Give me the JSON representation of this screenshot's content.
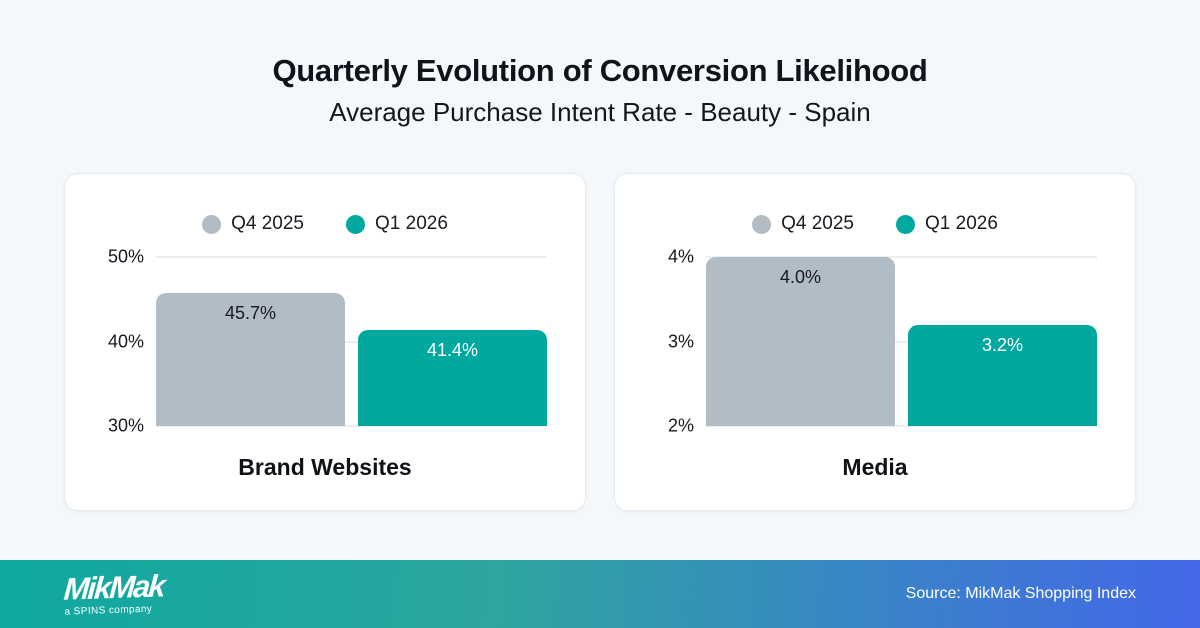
{
  "header": {
    "title": "Quarterly Evolution of Conversion Likelihood",
    "subtitle": "Average Purchase Intent Rate - Beauty - Spain"
  },
  "legend": {
    "items": [
      {
        "label": "Q4 2025",
        "color": "#b1bcc5",
        "value_label_color": "#16191f"
      },
      {
        "label": "Q1 2026",
        "color": "#00a8a0",
        "value_label_color": "#ffffff"
      }
    ],
    "position": "top"
  },
  "chart_data": [
    {
      "type": "bar",
      "title": "Brand Websites",
      "categories": [
        "Q4 2025",
        "Q1 2026"
      ],
      "values": [
        45.7,
        41.4
      ],
      "value_labels": [
        "45.7%",
        "41.4%"
      ],
      "ylim": [
        30,
        50
      ],
      "y_ticks": [
        {
          "value": 50,
          "label": "50%"
        },
        {
          "value": 40,
          "label": "40%"
        },
        {
          "value": 30,
          "label": "30%"
        }
      ],
      "grid": true,
      "unit": "%"
    },
    {
      "type": "bar",
      "title": "Media",
      "categories": [
        "Q4 2025",
        "Q1 2026"
      ],
      "values": [
        4.0,
        3.2
      ],
      "value_labels": [
        "4.0%",
        "3.2%"
      ],
      "ylim": [
        2,
        4
      ],
      "y_ticks": [
        {
          "value": 4,
          "label": "4%"
        },
        {
          "value": 3,
          "label": "3%"
        },
        {
          "value": 2,
          "label": "2%"
        }
      ],
      "grid": true,
      "unit": "%"
    }
  ],
  "footer": {
    "logo_text": "MikMak",
    "logo_tagline": "a SPINS company",
    "source": "Source: MikMak Shopping Index"
  },
  "colors": {
    "background": "#f4f8fb",
    "card": "#ffffff",
    "gridline": "#d9dde2",
    "series_q4": "#b1bcc5",
    "series_q1": "#00a8a0",
    "footer_gradient_start": "#0ea9a0",
    "footer_gradient_end": "#4467e9"
  }
}
